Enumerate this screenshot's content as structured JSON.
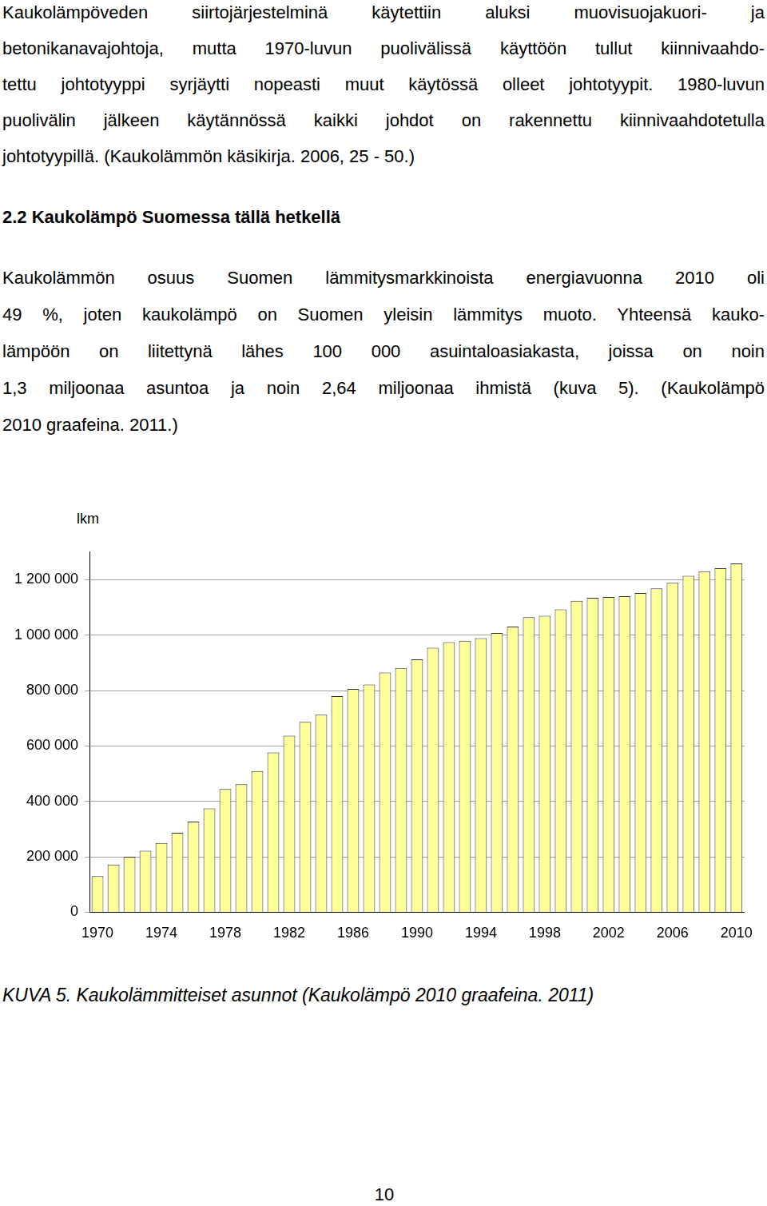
{
  "section1": {
    "lines": [
      "Kaukolämpöveden siirtojärjestelminä käytettiin aluksi muovisuojakuori- ja",
      "betonikanavajohtoja, mutta 1970-luvun puolivälissä käyttöön tullut kiinnivaahdo-",
      "tettu johtotyyppi syrjäytti nopeasti muut käytössä olleet johtotyypit. 1980-luvun",
      "puolivälin jälkeen käytännössä kaikki johdot on rakennettu kiinnivaahdotetulla",
      "johtotyypillä. (Kaukolämmön käsikirja. 2006, 25 - 50.)"
    ]
  },
  "heading": "2.2 Kaukolämpö Suomessa tällä hetkellä",
  "section2": {
    "lines": [
      "Kaukolämmön osuus Suomen lämmitysmarkkinoista energiavuonna 2010 oli",
      "49 %, joten kaukolämpö on Suomen yleisin lämmitys muoto. Yhteensä kauko-",
      "lämpöön on liitettynä lähes 100 000 asuintaloasiakasta, joissa on noin",
      "1,3 miljoonaa asuntoa ja noin 2,64 miljoonaa ihmistä (kuva 5). (Kaukolämpö",
      "2010 graafeina. 2011.)"
    ]
  },
  "chart_data": {
    "type": "bar",
    "ylabel": "lkm",
    "categories": [
      "1970",
      null,
      null,
      null,
      "1974",
      null,
      null,
      null,
      "1978",
      null,
      null,
      null,
      "1982",
      null,
      null,
      null,
      "1986",
      null,
      null,
      null,
      "1990",
      null,
      null,
      null,
      "1994",
      null,
      null,
      null,
      "1998",
      null,
      null,
      null,
      "2002",
      null,
      null,
      null,
      "2006",
      null,
      null,
      null,
      "2010"
    ],
    "values": [
      130000,
      172000,
      200000,
      222000,
      250000,
      287000,
      327000,
      375000,
      445000,
      462000,
      510000,
      577000,
      637000,
      687000,
      713000,
      780000,
      806000,
      822000,
      865000,
      882000,
      913000,
      955000,
      975000,
      980000,
      989000,
      1008000,
      1031000,
      1065000,
      1070000,
      1093000,
      1124000,
      1135000,
      1138000,
      1141000,
      1152000,
      1169000,
      1189000,
      1214000,
      1231000,
      1242000,
      1259000
    ],
    "color": "#ffff99",
    "ylim": [
      0,
      1300000
    ],
    "yticks": [
      0,
      {
        "value": 200000,
        "label": "200 000"
      },
      {
        "value": 400000,
        "label": "400 000"
      },
      {
        "value": 600000,
        "label": "600 000"
      },
      {
        "value": 800000,
        "label": "800 000"
      },
      {
        "value": 1000000,
        "label": "1 000 000"
      },
      {
        "value": 1200000,
        "label": "1 200 000"
      }
    ],
    "grid": true
  },
  "caption": "KUVA 5. Kaukolämmitteiset asunnot (Kaukolämpö 2010 graafeina. 2011)",
  "page_number": "10"
}
